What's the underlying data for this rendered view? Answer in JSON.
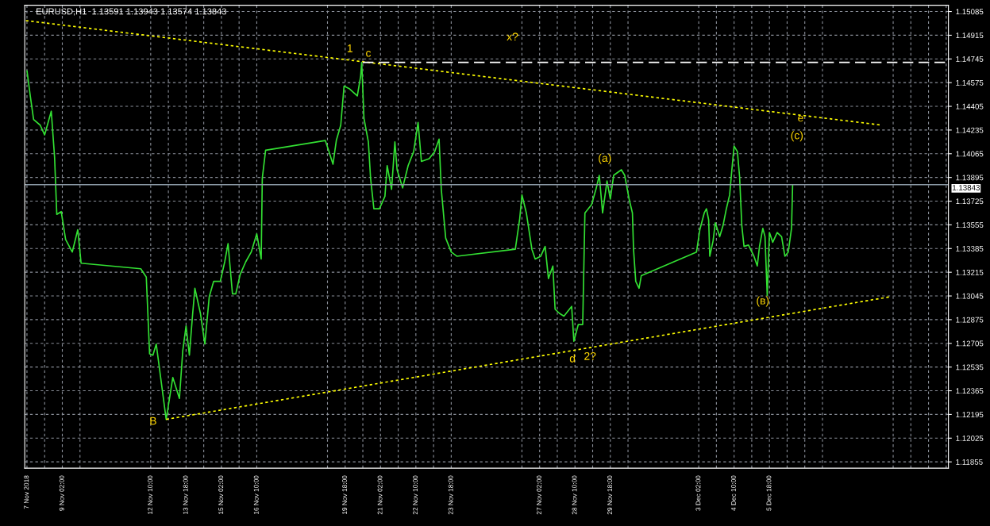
{
  "chart_data": {
    "type": "line",
    "title": "EURUSD,H1  1.13591 1.13943 1.13574 1.13843",
    "series": [
      {
        "color": "#33e033",
        "line_style": "solid",
        "x": [
          "2018-11-07T18:00",
          "2018-11-07T21:00",
          "2018-11-08T00:00",
          "2018-11-08T06:00",
          "2018-11-08T10:00",
          "2018-11-08T16:00",
          "2018-11-08T19:00",
          "2018-11-08T21:00",
          "2018-11-09T01:00",
          "2018-11-09T05:00",
          "2018-11-09T11:00",
          "2018-11-09T16:00",
          "2018-11-09T19:00",
          "2018-11-12T01:00",
          "2018-11-12T06:00",
          "2018-11-12T09:00",
          "2018-11-12T12:00",
          "2018-11-12T15:00",
          "2018-11-12T19:00",
          "2018-11-13T00:00",
          "2018-11-13T03:00",
          "2018-11-13T06:00",
          "2018-11-13T12:00",
          "2018-11-13T15:00",
          "2018-11-13T18:00",
          "2018-11-13T21:00",
          "2018-11-14T00:00",
          "2018-11-14T02:00",
          "2018-11-14T07:00",
          "2018-11-14T11:00",
          "2018-11-14T15:00",
          "2018-11-14T19:00",
          "2018-11-15T01:00",
          "2018-11-15T05:00",
          "2018-11-15T08:00",
          "2018-11-15T12:00",
          "2018-11-15T15:00",
          "2018-11-15T19:00",
          "2018-11-16T00:00",
          "2018-11-16T05:00",
          "2018-11-16T10:00",
          "2018-11-16T14:00",
          "2018-11-16T15:00",
          "2018-11-16T18:00",
          "2018-11-19T00:00",
          "2018-11-19T03:00",
          "2018-11-19T07:00",
          "2018-11-19T10:00",
          "2018-11-19T14:00",
          "2018-11-19T17:00",
          "2018-11-19T22:00",
          "2018-11-20T05:00",
          "2018-11-20T08:00",
          "2018-11-20T09:00",
          "2018-11-20T11:00",
          "2018-11-20T15:00",
          "2018-11-20T17:00",
          "2018-11-20T20:00",
          "2018-11-21T01:00",
          "2018-11-21T06:00",
          "2018-11-21T08:00",
          "2018-11-21T12:00",
          "2018-11-21T15:00",
          "2018-11-21T17:00",
          "2018-11-21T22:00",
          "2018-11-22T03:00",
          "2018-11-22T08:00",
          "2018-11-22T12:00",
          "2018-11-22T15:00",
          "2018-11-22T22:00",
          "2018-11-23T03:00",
          "2018-11-23T07:00",
          "2018-11-23T09:00",
          "2018-11-23T13:00",
          "2018-11-23T18:00",
          "2018-11-23T23:00",
          "2018-11-26T04:00",
          "2018-11-26T08:00",
          "2018-11-26T10:00",
          "2018-11-26T14:00",
          "2018-11-26T19:00",
          "2018-11-26T22:00",
          "2018-11-27T03:00",
          "2018-11-27T07:00",
          "2018-11-27T10:00",
          "2018-11-27T14:00",
          "2018-11-27T16:00",
          "2018-11-27T20:00",
          "2018-11-28T00:00",
          "2018-11-28T07:00",
          "2018-11-28T09:00",
          "2018-11-28T13:00",
          "2018-11-28T17:00",
          "2018-11-28T19:00",
          "2018-11-28T22:00",
          "2018-11-29T01:00",
          "2018-11-29T05:00",
          "2018-11-29T08:00",
          "2018-11-29T11:00",
          "2018-11-29T15:00",
          "2018-11-29T18:00",
          "2018-11-29T21:00",
          "2018-11-30T04:00",
          "2018-11-30T07:00",
          "2018-11-30T11:00",
          "2018-11-30T14:00",
          "2018-11-30T15:00",
          "2018-11-30T17:00",
          "2018-11-30T20:00",
          "2018-11-30T22:00",
          "2018-12-03T00:00",
          "2018-12-03T03:00",
          "2018-12-03T07:00",
          "2018-12-03T09:00",
          "2018-12-03T11:00",
          "2018-12-03T12:00",
          "2018-12-03T15:00",
          "2018-12-03T17:00",
          "2018-12-03T21:00",
          "2018-12-04T00:00",
          "2018-12-04T03:00",
          "2018-12-04T06:00",
          "2018-12-04T08:00",
          "2018-12-04T10:00",
          "2018-12-04T13:00",
          "2018-12-04T15:00",
          "2018-12-04T17:00",
          "2018-12-04T19:00",
          "2018-12-04T23:00",
          "2018-12-05T04:00",
          "2018-12-05T07:00",
          "2018-12-05T09:00",
          "2018-12-05T12:00",
          "2018-12-05T14:00",
          "2018-12-05T16:00",
          "2018-12-05T18:00",
          "2018-12-05T21:00",
          "2018-12-06T01:00",
          "2018-12-06T05:00",
          "2018-12-06T08:00",
          "2018-12-06T11:00",
          "2018-12-06T14:00",
          "2018-12-06T15:00"
        ],
        "values": [
          1.1466,
          1.1448,
          1.1431,
          1.1427,
          1.142,
          1.1437,
          1.1404,
          1.1363,
          1.1365,
          1.1345,
          1.1336,
          1.1352,
          1.1328,
          1.1324,
          1.1318,
          1.1263,
          1.1262,
          1.127,
          1.1246,
          1.1216,
          1.1231,
          1.1246,
          1.1231,
          1.1265,
          1.1283,
          1.1262,
          1.1292,
          1.131,
          1.1292,
          1.127,
          1.1304,
          1.1315,
          1.1315,
          1.1329,
          1.1342,
          1.1306,
          1.1306,
          1.132,
          1.1329,
          1.1336,
          1.1349,
          1.1331,
          1.1389,
          1.1409,
          1.1416,
          1.1409,
          1.1399,
          1.1416,
          1.1427,
          1.1455,
          1.1453,
          1.1448,
          1.1462,
          1.1472,
          1.1432,
          1.1415,
          1.1389,
          1.1367,
          1.1367,
          1.1376,
          1.1398,
          1.1381,
          1.1415,
          1.1395,
          1.1382,
          1.1398,
          1.1408,
          1.1429,
          1.1401,
          1.1403,
          1.1408,
          1.1417,
          1.1381,
          1.1346,
          1.1336,
          1.1333,
          1.1338,
          1.136,
          1.1377,
          1.1364,
          1.1338,
          1.1331,
          1.1333,
          1.134,
          1.1317,
          1.1326,
          1.1295,
          1.1292,
          1.129,
          1.1297,
          1.1272,
          1.1284,
          1.1284,
          1.1364,
          1.1367,
          1.137,
          1.1381,
          1.1391,
          1.1364,
          1.1387,
          1.1374,
          1.1391,
          1.1395,
          1.1391,
          1.1374,
          1.1364,
          1.1338,
          1.1315,
          1.131,
          1.1319,
          1.1336,
          1.1352,
          1.1364,
          1.1367,
          1.1359,
          1.1333,
          1.1344,
          1.1357,
          1.1347,
          1.1355,
          1.1367,
          1.1377,
          1.1395,
          1.1412,
          1.1408,
          1.139,
          1.1355,
          1.134,
          1.1341,
          1.1333,
          1.1326,
          1.134,
          1.1353,
          1.1347,
          1.1305,
          1.135,
          1.1343,
          1.135,
          1.1347,
          1.1333,
          1.1336,
          1.1353,
          1.13843
        ]
      },
      {
        "color": "#ffff00",
        "line_style": "dotted",
        "x": [
          "2018-11-07T17:00",
          "2018-12-10T00:00"
        ],
        "values": [
          1.1502,
          1.1427
        ]
      },
      {
        "color": "#ffff00",
        "line_style": "dotted",
        "x": [
          "2018-11-13T00:00",
          "2018-12-10T08:00"
        ],
        "values": [
          1.1216,
          1.1304
        ]
      },
      {
        "color": "#ffffff",
        "line_style": "dashed",
        "x": [
          "2018-11-20T10:00",
          "2018-12-12T12:00"
        ],
        "values": [
          1.1472,
          1.1472
        ]
      }
    ],
    "ref_lines": [
      {
        "axis": "y",
        "value": 1.13843,
        "label": "1.13843",
        "color": "#8c9aa6"
      }
    ],
    "annotations": [
      "1",
      "c",
      "x?",
      "e",
      "(c)",
      "(a)",
      "(в)",
      "B",
      "d",
      "2?"
    ],
    "xlim": [
      "2018-11-07T16:00",
      "2018-12-12T12:00"
    ],
    "xticks": [
      {
        "value": "2018-11-07T18:00",
        "label": "7 Nov 2018"
      },
      {
        "value": "2018-11-08T10:00",
        "label": null
      },
      {
        "value": "2018-11-09T02:00",
        "label": "9 Nov 02:00"
      },
      {
        "value": "2018-11-09T18:00",
        "label": null
      },
      {
        "value": "2018-11-12T10:00",
        "label": "12 Nov 10:00"
      },
      {
        "value": "2018-11-13T02:00",
        "label": null
      },
      {
        "value": "2018-11-13T18:00",
        "label": "13 Nov 18:00"
      },
      {
        "value": "2018-11-14T10:00",
        "label": null
      },
      {
        "value": "2018-11-15T02:00",
        "label": "15 Nov 02:00"
      },
      {
        "value": "2018-11-15T18:00",
        "label": null
      },
      {
        "value": "2018-11-16T10:00",
        "label": "16 Nov 10:00"
      },
      {
        "value": "2018-11-19T02:00",
        "label": null
      },
      {
        "value": "2018-11-19T18:00",
        "label": "19 Nov 18:00"
      },
      {
        "value": "2018-11-20T10:00",
        "label": null
      },
      {
        "value": "2018-11-21T02:00",
        "label": "21 Nov 02:00"
      },
      {
        "value": "2018-11-21T18:00",
        "label": null
      },
      {
        "value": "2018-11-22T10:00",
        "label": "22 Nov 10:00"
      },
      {
        "value": "2018-11-23T02:00",
        "label": null
      },
      {
        "value": "2018-11-23T18:00",
        "label": "23 Nov 18:00"
      },
      {
        "value": "2018-11-26T10:00",
        "label": null
      },
      {
        "value": "2018-11-27T02:00",
        "label": "27 Nov 02:00"
      },
      {
        "value": "2018-11-27T18:00",
        "label": null
      },
      {
        "value": "2018-11-28T10:00",
        "label": "28 Nov 10:00"
      },
      {
        "value": "2018-11-29T02:00",
        "label": null
      },
      {
        "value": "2018-11-29T18:00",
        "label": "29 Nov 18:00"
      },
      {
        "value": "2018-11-30T10:00",
        "label": null
      },
      {
        "value": "2018-12-03T02:00",
        "label": "3 Dec 02:00"
      },
      {
        "value": "2018-12-03T18:00",
        "label": null
      },
      {
        "value": "2018-12-04T10:00",
        "label": "4 Dec 10:00"
      },
      {
        "value": "2018-12-05T02:00",
        "label": null
      },
      {
        "value": "2018-12-05T18:00",
        "label": "5 Dec 18:00"
      },
      {
        "value": "2018-12-06T10:00",
        "label": null
      },
      {
        "value": "2018-12-07T02:00",
        "label": null
      },
      {
        "value": "2018-12-07T18:00",
        "label": null
      },
      {
        "value": "2018-12-10T10:00",
        "label": null
      },
      {
        "value": "2018-12-11T02:00",
        "label": null
      },
      {
        "value": "2018-12-11T18:00",
        "label": null
      },
      {
        "value": "2018-12-12T10:00",
        "label": null
      }
    ],
    "ylim": [
      1.1181,
      1.1513
    ],
    "yticks": [
      1.11855,
      1.12025,
      1.12195,
      1.12365,
      1.12535,
      1.12705,
      1.12875,
      1.13045,
      1.13215,
      1.13385,
      1.13555,
      1.13725,
      1.13895,
      1.14065,
      1.14235,
      1.14405,
      1.14575,
      1.14745,
      1.14915,
      1.15085
    ],
    "grid": true,
    "legend": false,
    "marker": "none"
  }
}
